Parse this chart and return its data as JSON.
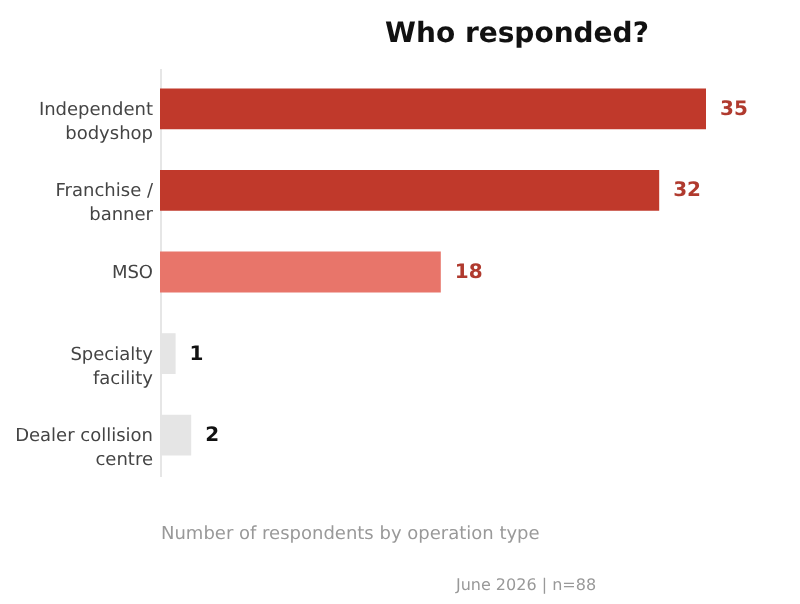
{
  "chart_data": {
    "type": "bar",
    "orientation": "horizontal",
    "title": "Who responded?",
    "xlabel": "Number of respondents by operation type",
    "categories": [
      "Independent bodyshop",
      "Franchise / banner",
      "MSO",
      "Specialty facility",
      "Dealer collision centre"
    ],
    "values": [
      35,
      32,
      18,
      1,
      2
    ],
    "colors": [
      "#c0392b",
      "#c0392b",
      "#e8756a",
      "#e5e5e5",
      "#e5e5e5"
    ],
    "data_labels": true,
    "annotations": [
      "June 2026  |  n=88"
    ]
  }
}
